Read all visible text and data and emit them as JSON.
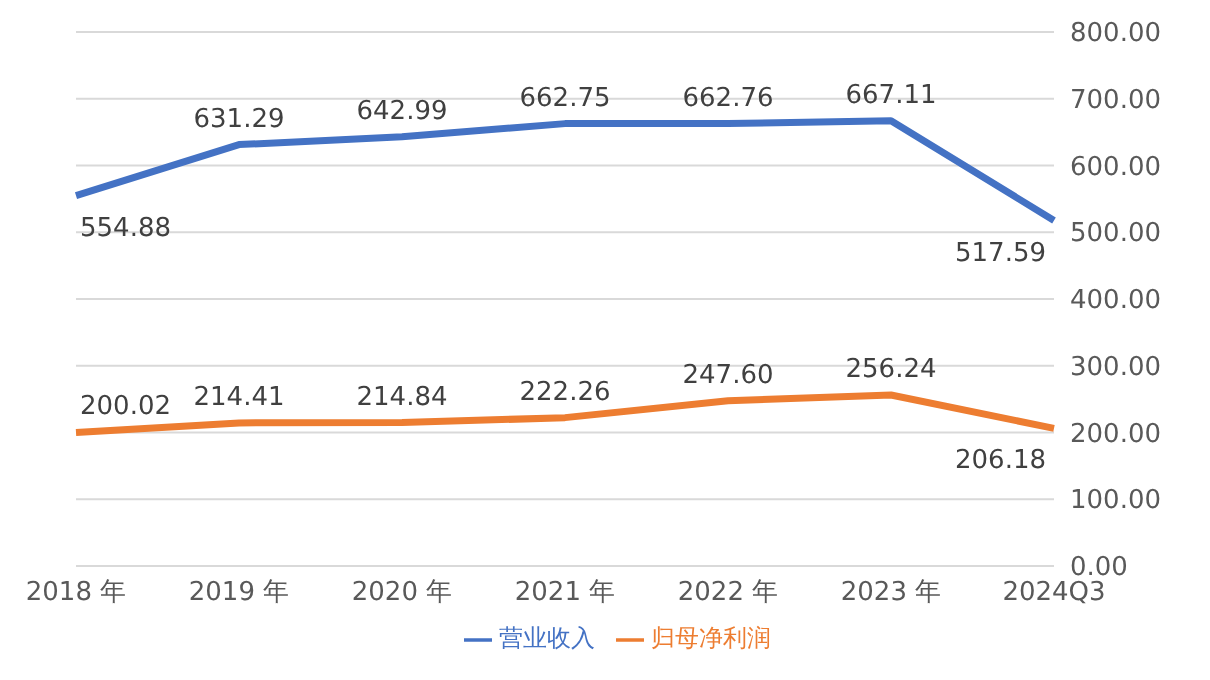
{
  "chart_data": {
    "type": "line",
    "categories": [
      "2018 年",
      "2019 年",
      "2020 年",
      "2021 年",
      "2022 年",
      "2023 年",
      "2024Q3"
    ],
    "series": [
      {
        "name": "营业收入",
        "color": "#4472c4",
        "values": [
          554.88,
          631.29,
          642.99,
          662.75,
          662.76,
          667.11,
          517.59
        ],
        "value_labels": [
          "554.88",
          "631.29",
          "642.99",
          "662.75",
          "662.76",
          "667.11",
          "517.59"
        ]
      },
      {
        "name": "归母净利润",
        "color": "#ed7d31",
        "values": [
          200.02,
          214.41,
          214.84,
          222.26,
          247.6,
          256.24,
          206.18
        ],
        "value_labels": [
          "200.02",
          "214.41",
          "214.84",
          "222.26",
          "247.60",
          "256.24",
          "206.18"
        ]
      }
    ],
    "ylim": [
      0,
      800
    ],
    "yticks": [
      {
        "value": 0,
        "label": "0.00"
      },
      {
        "value": 100,
        "label": "100.00"
      },
      {
        "value": 200,
        "label": "200.00"
      },
      {
        "value": 300,
        "label": "300.00"
      },
      {
        "value": 400,
        "label": "400.00"
      },
      {
        "value": 500,
        "label": "500.00"
      },
      {
        "value": 600,
        "label": "600.00"
      },
      {
        "value": 700,
        "label": "700.00"
      },
      {
        "value": 800,
        "label": "800.00"
      }
    ],
    "grid": "y",
    "legend": "bottom",
    "marker": "none",
    "line_style": "solid"
  }
}
